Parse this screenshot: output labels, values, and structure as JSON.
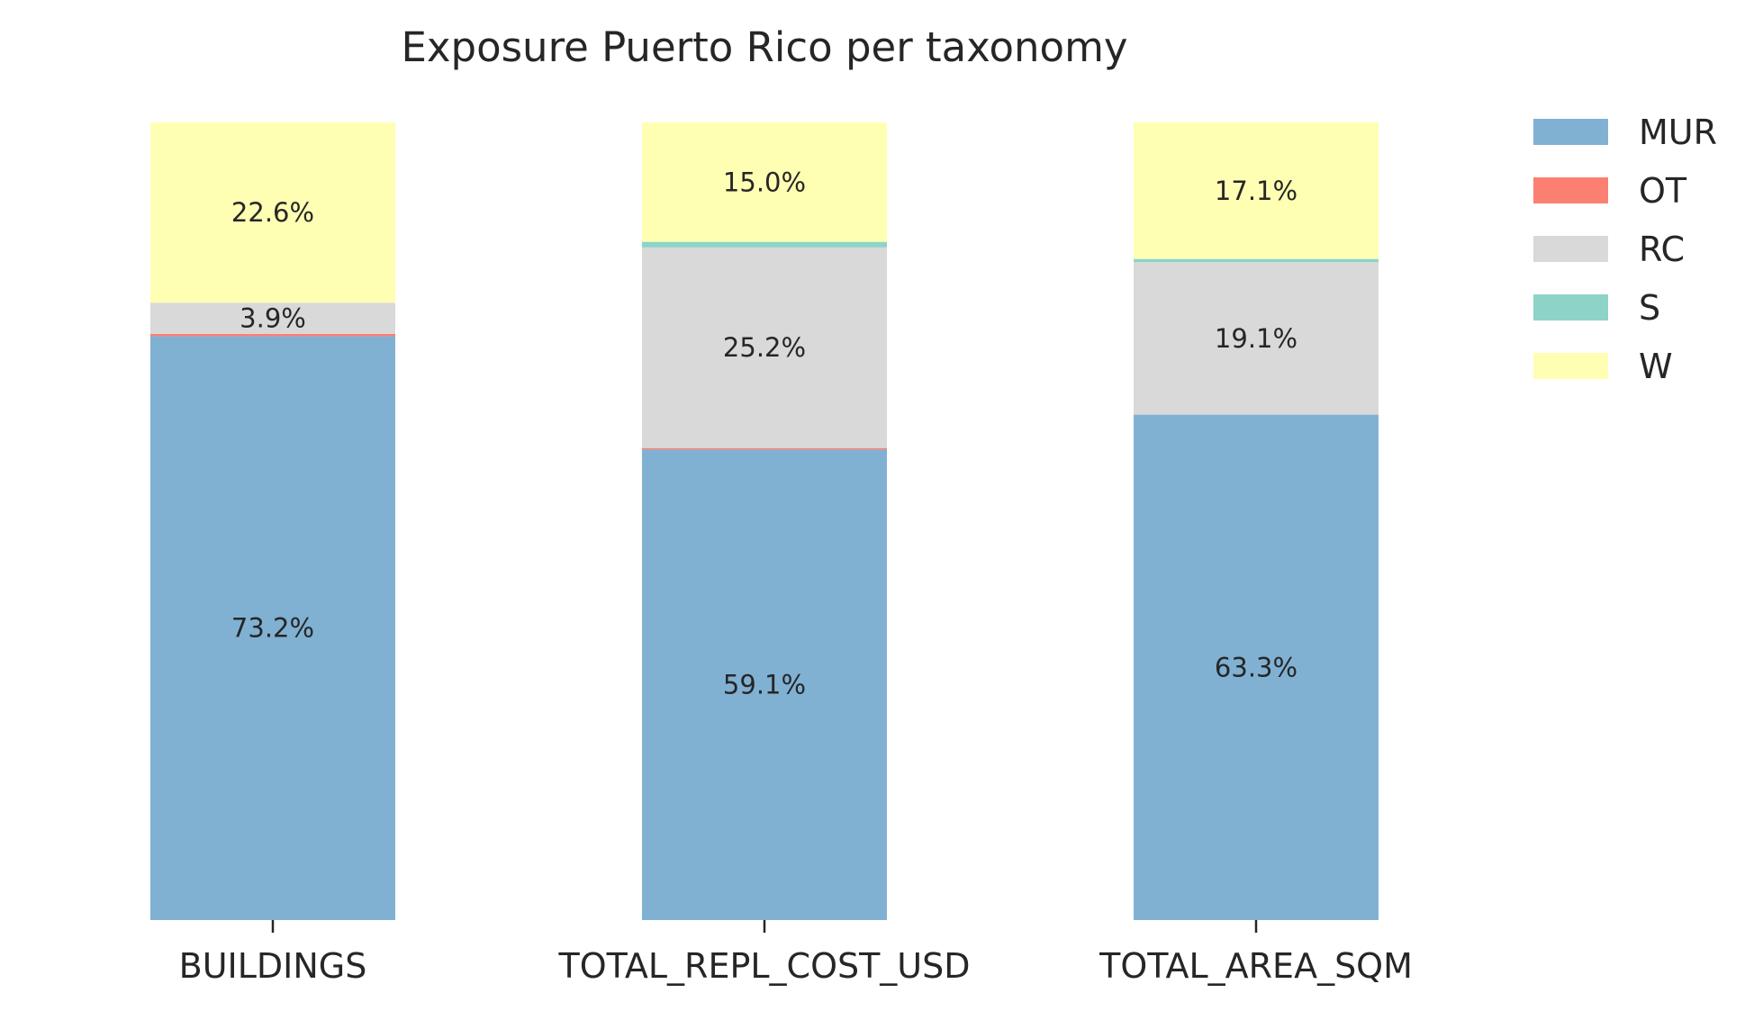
{
  "chart_data": {
    "type": "bar",
    "stacked": true,
    "title": "Exposure Puerto Rico per taxonomy",
    "xlabel": "",
    "ylabel": "",
    "ylim": [
      0,
      1
    ],
    "categories": [
      "BUILDINGS",
      "TOTAL_REPL_COST_USD",
      "TOTAL_AREA_SQM"
    ],
    "series": [
      {
        "name": "MUR",
        "color": "#80b1d3",
        "values": [
          0.732,
          0.591,
          0.633
        ],
        "labels": [
          "73.2%",
          "59.1%",
          "63.3%"
        ]
      },
      {
        "name": "OT",
        "color": "#fb8072",
        "values": [
          0.003,
          0.002,
          0.0
        ],
        "labels": [
          "",
          "",
          ""
        ]
      },
      {
        "name": "RC",
        "color": "#d9d9d9",
        "values": [
          0.039,
          0.252,
          0.191
        ],
        "labels": [
          "3.9%",
          "25.2%",
          "19.1%"
        ]
      },
      {
        "name": "S",
        "color": "#8dd3c7",
        "values": [
          0.0,
          0.007,
          0.004
        ],
        "labels": [
          "",
          "",
          ""
        ]
      },
      {
        "name": "W",
        "color": "#ffffb3",
        "values": [
          0.226,
          0.15,
          0.171
        ],
        "labels": [
          "22.6%",
          "15.0%",
          "17.1%"
        ]
      }
    ],
    "legend": {
      "position": "top-right",
      "entries": [
        "MUR",
        "OT",
        "RC",
        "S",
        "W"
      ]
    },
    "grid": false
  }
}
